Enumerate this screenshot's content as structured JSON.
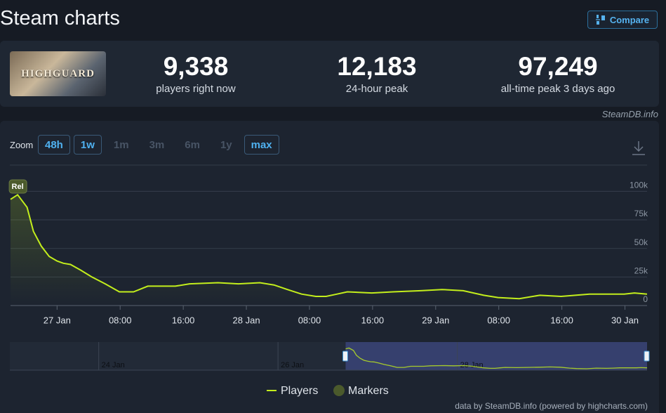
{
  "header": {
    "title": "Steam charts",
    "compare": "Compare"
  },
  "game": {
    "logo_text": "HIGHGUARD"
  },
  "stats": [
    {
      "value": "9,338",
      "label": "players right now"
    },
    {
      "value": "12,183",
      "label": "24-hour peak"
    },
    {
      "value": "97,249",
      "label": "all-time peak 3 days ago"
    }
  ],
  "source": "SteamDB.info",
  "zoom": {
    "label": "Zoom",
    "options": [
      {
        "label": "48h",
        "enabled": true
      },
      {
        "label": "1w",
        "enabled": true
      },
      {
        "label": "1m",
        "enabled": false
      },
      {
        "label": "3m",
        "enabled": false
      },
      {
        "label": "6m",
        "enabled": false
      },
      {
        "label": "1y",
        "enabled": false
      },
      {
        "label": "max",
        "enabled": true
      }
    ]
  },
  "chart_data": {
    "type": "line",
    "x": [
      -5.9,
      -5.0,
      -3.8,
      -3.0,
      -2.0,
      -1.0,
      0,
      0.8,
      1.7,
      3.0,
      4.4,
      6.1,
      7.9,
      9.7,
      11.5,
      12.8,
      15.0,
      16.8,
      20.4,
      23.0,
      25.7,
      27.5,
      29.2,
      31.0,
      32.8,
      34.1,
      35.5,
      36.8,
      39.9,
      42.6,
      46.1,
      48.8,
      51.5,
      54.1,
      55.9,
      58.6,
      61.2,
      63.9,
      65.7,
      67.5,
      70.1,
      71.9,
      73.2,
      74.8
    ],
    "series": [
      {
        "name": "Players",
        "color": "#c3ee1c",
        "values": [
          93000,
          97000,
          86000,
          65000,
          52000,
          43000,
          39000,
          37000,
          36000,
          31000,
          25000,
          19000,
          12000,
          12000,
          17000,
          17000,
          17000,
          19000,
          20000,
          19000,
          20000,
          18000,
          14000,
          10000,
          8000,
          8000,
          10000,
          12000,
          11000,
          12000,
          13000,
          14000,
          13000,
          9000,
          7000,
          6000,
          9000,
          8000,
          9000,
          10000,
          10000,
          10000,
          11000,
          10000
        ]
      }
    ],
    "markers": {
      "name": "Markers",
      "color": "#4b5a2c",
      "label": "Rel",
      "x": -5.0
    },
    "xlim": [
      -5.9,
      74.8
    ],
    "xticks": [
      {
        "value": 0,
        "label": "27 Jan"
      },
      {
        "value": 8,
        "label": "08:00"
      },
      {
        "value": 16,
        "label": "16:00"
      },
      {
        "value": 24,
        "label": "28 Jan"
      },
      {
        "value": 32,
        "label": "08:00"
      },
      {
        "value": 40,
        "label": "16:00"
      },
      {
        "value": 48,
        "label": "29 Jan"
      },
      {
        "value": 56,
        "label": "08:00"
      },
      {
        "value": 64,
        "label": "16:00"
      },
      {
        "value": 72,
        "label": "30 Jan"
      }
    ],
    "ylim": [
      0,
      123000
    ],
    "yticks": [
      0,
      {
        "value": 25000,
        "label": "25k"
      },
      {
        "value": 50000,
        "label": "50k"
      },
      {
        "value": 75000,
        "label": "75k"
      },
      {
        "value": 100000,
        "label": "100k"
      }
    ],
    "grid": true,
    "navigator": {
      "xlim": [
        -95.8,
        74.8
      ],
      "selection": [
        -5.9,
        74.8
      ],
      "xticks": [
        {
          "value": -72,
          "label": "24 Jan"
        },
        {
          "value": -24,
          "label": "26 Jan"
        },
        {
          "value": 24,
          "label": "28 Jan"
        }
      ]
    }
  },
  "credit": "data by SteamDB.info (powered by highcharts.com)"
}
